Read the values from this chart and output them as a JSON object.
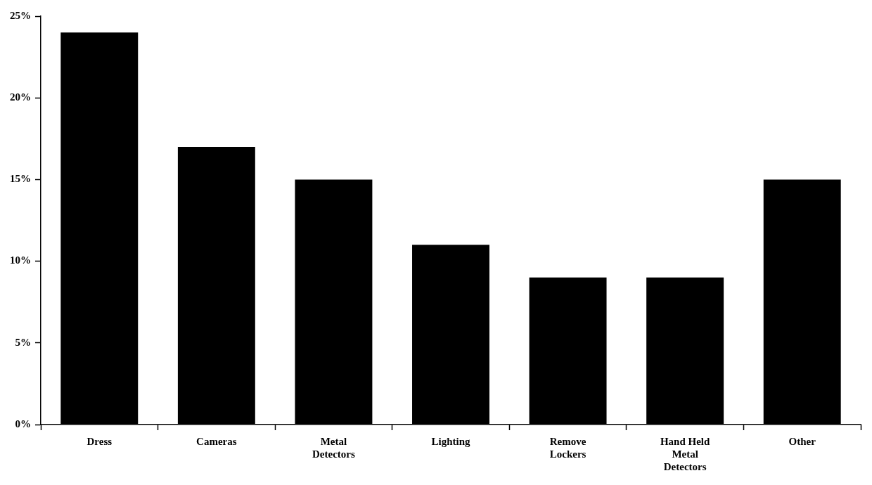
{
  "chart_data": {
    "type": "bar",
    "categories": [
      "Dress",
      "Cameras",
      "Metal Detectors",
      "Lighting",
      "Remove Lockers",
      "Hand Held Metal Detectors",
      "Other"
    ],
    "values": [
      24,
      17,
      15,
      11,
      9,
      9,
      15
    ],
    "color": "#000000",
    "ylim": [
      0,
      25
    ],
    "yticks": [
      {
        "value": 0,
        "label": "0%"
      },
      {
        "value": 5,
        "label": "5%"
      },
      {
        "value": 10,
        "label": "10%"
      },
      {
        "value": 15,
        "label": "15%"
      },
      {
        "value": 20,
        "label": "20%"
      },
      {
        "value": 25,
        "label": "25%"
      }
    ],
    "legend": false
  }
}
